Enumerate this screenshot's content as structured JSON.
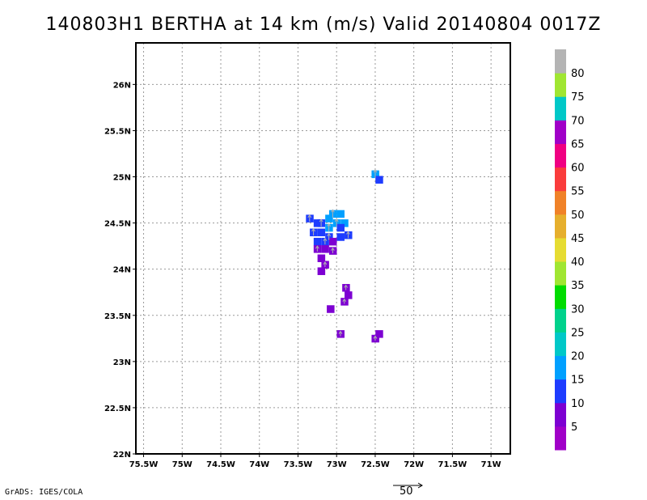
{
  "title": "140803H1 BERTHA at 14 km (m/s) Valid 20140804 0017Z",
  "credit": "GrADS: IGES/COLA",
  "reference_vector": {
    "label": "50"
  },
  "colorbar": {
    "labels": [
      "5",
      "10",
      "15",
      "20",
      "25",
      "30",
      "35",
      "40",
      "45",
      "50",
      "55",
      "60",
      "65",
      "70",
      "75",
      "80"
    ],
    "colors": [
      "#a000c8",
      "#7d00d2",
      "#1e3cff",
      "#00a0ff",
      "#00c8c8",
      "#00d28c",
      "#00dc00",
      "#a0e632",
      "#e6dc32",
      "#e6af2d",
      "#f08228",
      "#fa3c3c",
      "#f00082",
      "#a000c8",
      "#00c8c8",
      "#a0e632",
      "#b4b4b4"
    ]
  },
  "chart_data": {
    "type": "heatmap",
    "title": "140803H1 BERTHA at 14 km (m/s) Valid 20140804 0017Z",
    "xlabel": "",
    "ylabel": "",
    "xlim": [
      -75.6,
      -70.75
    ],
    "ylim": [
      22,
      26.45
    ],
    "xticks": [
      -75.5,
      -75,
      -74.5,
      -74,
      -73.5,
      -73,
      -72.5,
      -72,
      -71.5,
      -71
    ],
    "xtick_labels": [
      "75.5W",
      "75W",
      "74.5W",
      "74W",
      "73.5W",
      "73W",
      "72.5W",
      "72W",
      "71.5W",
      "71W"
    ],
    "yticks": [
      22,
      22.5,
      23,
      23.5,
      24,
      24.5,
      25,
      25.5,
      26
    ],
    "ytick_labels": [
      "22N",
      "22.5N",
      "23N",
      "23.5N",
      "24N",
      "24.5N",
      "25N",
      "25.5N",
      "26N"
    ],
    "grid": true,
    "colorbar_levels": [
      5,
      10,
      15,
      20,
      25,
      30,
      35,
      40,
      45,
      50,
      55,
      60,
      65,
      70,
      75,
      80
    ],
    "cells": [
      {
        "lon": -72.5,
        "lat": 25.03,
        "value": 17
      },
      {
        "lon": -72.45,
        "lat": 24.97,
        "value": 12
      },
      {
        "lon": -73.35,
        "lat": 24.55,
        "value": 12
      },
      {
        "lon": -73.25,
        "lat": 24.5,
        "value": 12
      },
      {
        "lon": -73.2,
        "lat": 24.5,
        "value": 14
      },
      {
        "lon": -73.1,
        "lat": 24.55,
        "value": 16
      },
      {
        "lon": -73.05,
        "lat": 24.6,
        "value": 17
      },
      {
        "lon": -72.95,
        "lat": 24.6,
        "value": 17
      },
      {
        "lon": -73.0,
        "lat": 24.5,
        "value": 16
      },
      {
        "lon": -72.9,
        "lat": 24.5,
        "value": 16
      },
      {
        "lon": -73.1,
        "lat": 24.45,
        "value": 15
      },
      {
        "lon": -72.95,
        "lat": 24.45,
        "value": 13
      },
      {
        "lon": -73.3,
        "lat": 24.4,
        "value": 12
      },
      {
        "lon": -73.2,
        "lat": 24.4,
        "value": 12
      },
      {
        "lon": -73.1,
        "lat": 24.35,
        "value": 11
      },
      {
        "lon": -72.95,
        "lat": 24.35,
        "value": 12
      },
      {
        "lon": -72.85,
        "lat": 24.37,
        "value": 11
      },
      {
        "lon": -73.25,
        "lat": 24.3,
        "value": 11
      },
      {
        "lon": -73.15,
        "lat": 24.3,
        "value": 10
      },
      {
        "lon": -73.05,
        "lat": 24.3,
        "value": 9
      },
      {
        "lon": -73.25,
        "lat": 24.22,
        "value": 8
      },
      {
        "lon": -73.15,
        "lat": 24.22,
        "value": 8
      },
      {
        "lon": -73.05,
        "lat": 24.2,
        "value": 7
      },
      {
        "lon": -73.2,
        "lat": 24.12,
        "value": 7
      },
      {
        "lon": -73.15,
        "lat": 24.05,
        "value": 6
      },
      {
        "lon": -73.2,
        "lat": 23.98,
        "value": 5
      },
      {
        "lon": -72.88,
        "lat": 23.8,
        "value": 6
      },
      {
        "lon": -72.85,
        "lat": 23.72,
        "value": 5
      },
      {
        "lon": -72.9,
        "lat": 23.65,
        "value": 5
      },
      {
        "lon": -73.08,
        "lat": 23.57,
        "value": 5
      },
      {
        "lon": -72.95,
        "lat": 23.3,
        "value": 6
      },
      {
        "lon": -72.45,
        "lat": 23.3,
        "value": 6
      },
      {
        "lon": -72.5,
        "lat": 23.25,
        "value": 5
      }
    ]
  }
}
